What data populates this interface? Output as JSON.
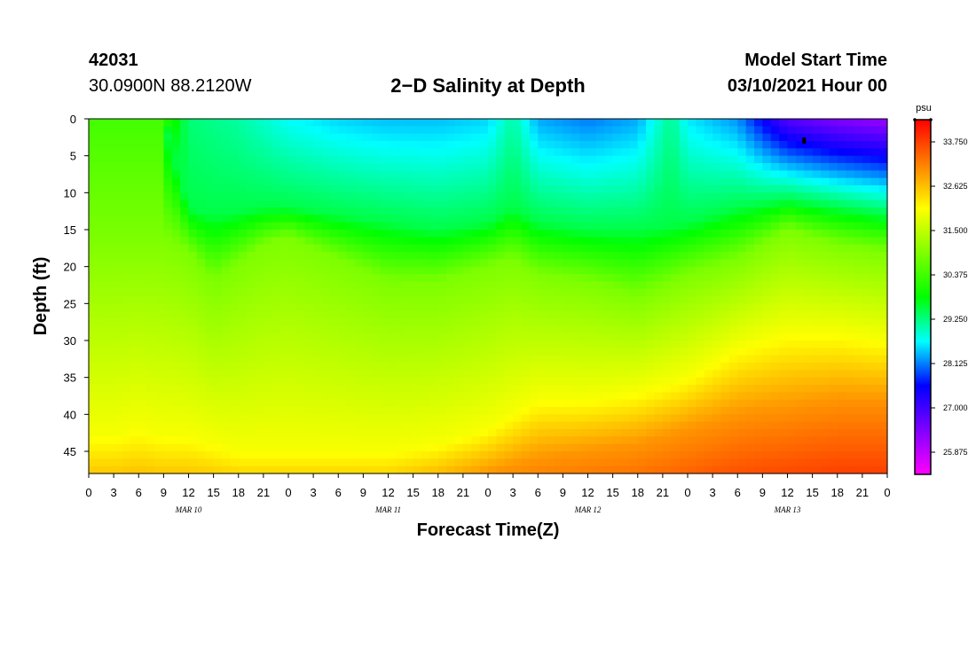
{
  "header": {
    "station_id": "42031",
    "coords": "30.0900N 88.2120W",
    "title": "2−D Salinity at Depth",
    "model_start_label": "Model Start Time",
    "model_start_value": "03/10/2021 Hour 00"
  },
  "chart_data": {
    "type": "heatmap",
    "title": "2−D Salinity at Depth",
    "xlabel": "Forecast Time(Z)",
    "ylabel": "Depth (ft)",
    "x_hours_range": [
      0,
      96
    ],
    "ylim": [
      0,
      48
    ],
    "x_tick_hours": [
      0,
      3,
      6,
      9,
      12,
      15,
      18,
      21,
      24,
      27,
      30,
      33,
      36,
      39,
      42,
      45,
      48,
      51,
      54,
      57,
      60,
      63,
      66,
      69,
      72,
      75,
      78,
      81,
      84,
      87,
      90,
      93,
      96
    ],
    "x_tick_labels": [
      "0",
      "3",
      "6",
      "9",
      "12",
      "15",
      "18",
      "21",
      "0",
      "3",
      "6",
      "9",
      "12",
      "15",
      "18",
      "21",
      "0",
      "3",
      "6",
      "9",
      "12",
      "15",
      "18",
      "21",
      "0",
      "3",
      "6",
      "9",
      "12",
      "15",
      "18",
      "21",
      "0"
    ],
    "y_ticks": [
      0,
      5,
      10,
      15,
      20,
      25,
      30,
      35,
      40,
      45
    ],
    "date_labels": [
      {
        "label": "MAR 10",
        "hour": 12
      },
      {
        "label": "MAR 11",
        "hour": 36
      },
      {
        "label": "MAR 12",
        "hour": 60
      },
      {
        "label": "MAR 13",
        "hour": 84
      }
    ],
    "colorbar": {
      "unit": "psu",
      "range": [
        25.3125,
        34.3125
      ],
      "tick_values": [
        33.75,
        32.625,
        31.5,
        30.375,
        29.25,
        28.125,
        27.0,
        25.875
      ],
      "tick_labels": [
        "33.750",
        "32.625",
        "31.500",
        "30.375",
        "29.250",
        "28.125",
        "27.000",
        "25.875"
      ],
      "colors": [
        "#ff00ff",
        "#8000ff",
        "#0000ff",
        "#00ffff",
        "#00ff00",
        "#80ff00",
        "#ffff00",
        "#ff8000",
        "#ff0000"
      ]
    },
    "series": [
      {
        "name": "top_salinity_profile",
        "hours": [
          0,
          9,
          12,
          18,
          24,
          30,
          36,
          42,
          48,
          51,
          54,
          60,
          66,
          70,
          72,
          78,
          84,
          90,
          96
        ],
        "values": [
          30.4,
          30.4,
          29.3,
          29.1,
          28.7,
          28.5,
          28.4,
          28.4,
          28.5,
          29.1,
          28.3,
          28.1,
          28.3,
          29.2,
          28.6,
          28.2,
          26.8,
          26.4,
          26.2
        ]
      },
      {
        "name": "boundary_depth_29_5_psu_ft",
        "hours": [
          0,
          9,
          12,
          15,
          21,
          24,
          30,
          36,
          42,
          48,
          51,
          54,
          60,
          66,
          72,
          78,
          84,
          90,
          96
        ],
        "values": [
          0,
          0,
          12,
          13,
          12,
          12,
          13,
          14,
          15,
          14,
          12,
          14,
          15,
          15,
          14,
          12,
          11,
          12,
          13
        ]
      },
      {
        "name": "boundary_depth_30_9_psu_ft",
        "hours": [
          0,
          9,
          12,
          15,
          21,
          24,
          30,
          36,
          42,
          48,
          51,
          54,
          60,
          66,
          72,
          78,
          84,
          90,
          96
        ],
        "values": [
          16,
          16,
          18,
          22,
          17,
          16,
          19,
          22,
          22,
          20,
          19,
          21,
          22,
          24,
          21,
          19,
          15,
          17,
          18
        ]
      },
      {
        "name": "boundary_depth_32_0_psu_ft",
        "hours": [
          0,
          3,
          6,
          9,
          12,
          15,
          18,
          21,
          24,
          30,
          36,
          42,
          48,
          54,
          60,
          66,
          72,
          78,
          84,
          90,
          96
        ],
        "values": [
          43,
          43,
          42,
          43,
          43,
          44,
          45,
          45,
          45,
          45,
          45,
          44,
          42,
          38,
          38,
          37,
          35,
          31,
          29,
          29,
          30
        ]
      },
      {
        "name": "boundary_depth_33_0_psu_ft",
        "hours": [
          0,
          12,
          24,
          36,
          42,
          48,
          54,
          60,
          66,
          72,
          78,
          84,
          90,
          96
        ],
        "values": [
          52,
          52,
          52,
          52,
          50,
          48,
          46,
          45,
          44,
          42,
          40,
          39,
          38,
          38
        ]
      }
    ],
    "marker": {
      "hour": 86,
      "depth": 3
    }
  }
}
